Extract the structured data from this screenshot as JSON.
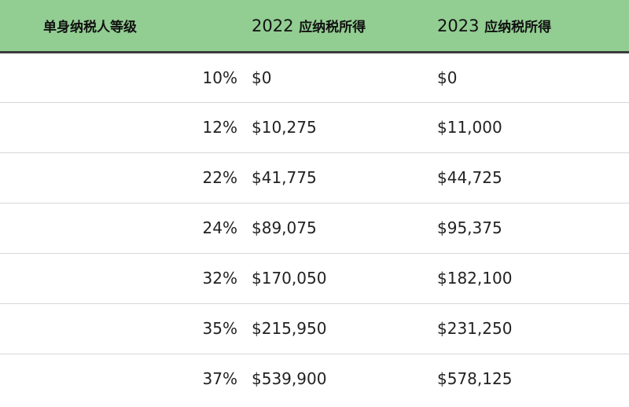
{
  "table": {
    "headers": {
      "level": "单身纳税人等级",
      "rate": "",
      "y2022_year": "2022",
      "y2022_label": "应纳税所得",
      "y2023_year": "2023",
      "y2023_label": "应纳税所得"
    },
    "rows": [
      {
        "rate": "10%",
        "y2022": "$0",
        "y2023": "$0"
      },
      {
        "rate": "12%",
        "y2022": "$10,275",
        "y2023": "$11,000"
      },
      {
        "rate": "22%",
        "y2022": "$41,775",
        "y2023": "$44,725"
      },
      {
        "rate": "24%",
        "y2022": "$89,075",
        "y2023": "$95,375"
      },
      {
        "rate": "32%",
        "y2022": "$170,050",
        "y2023": "$182,100"
      },
      {
        "rate": "35%",
        "y2022": "$215,950",
        "y2023": "$231,250"
      },
      {
        "rate": "37%",
        "y2022": "$539,900",
        "y2023": "$578,125"
      }
    ]
  },
  "colors": {
    "header_bg": "#92cd92",
    "header_rule": "#3c3c3c",
    "row_divider": "#d7d7d7",
    "text": "#222222"
  }
}
